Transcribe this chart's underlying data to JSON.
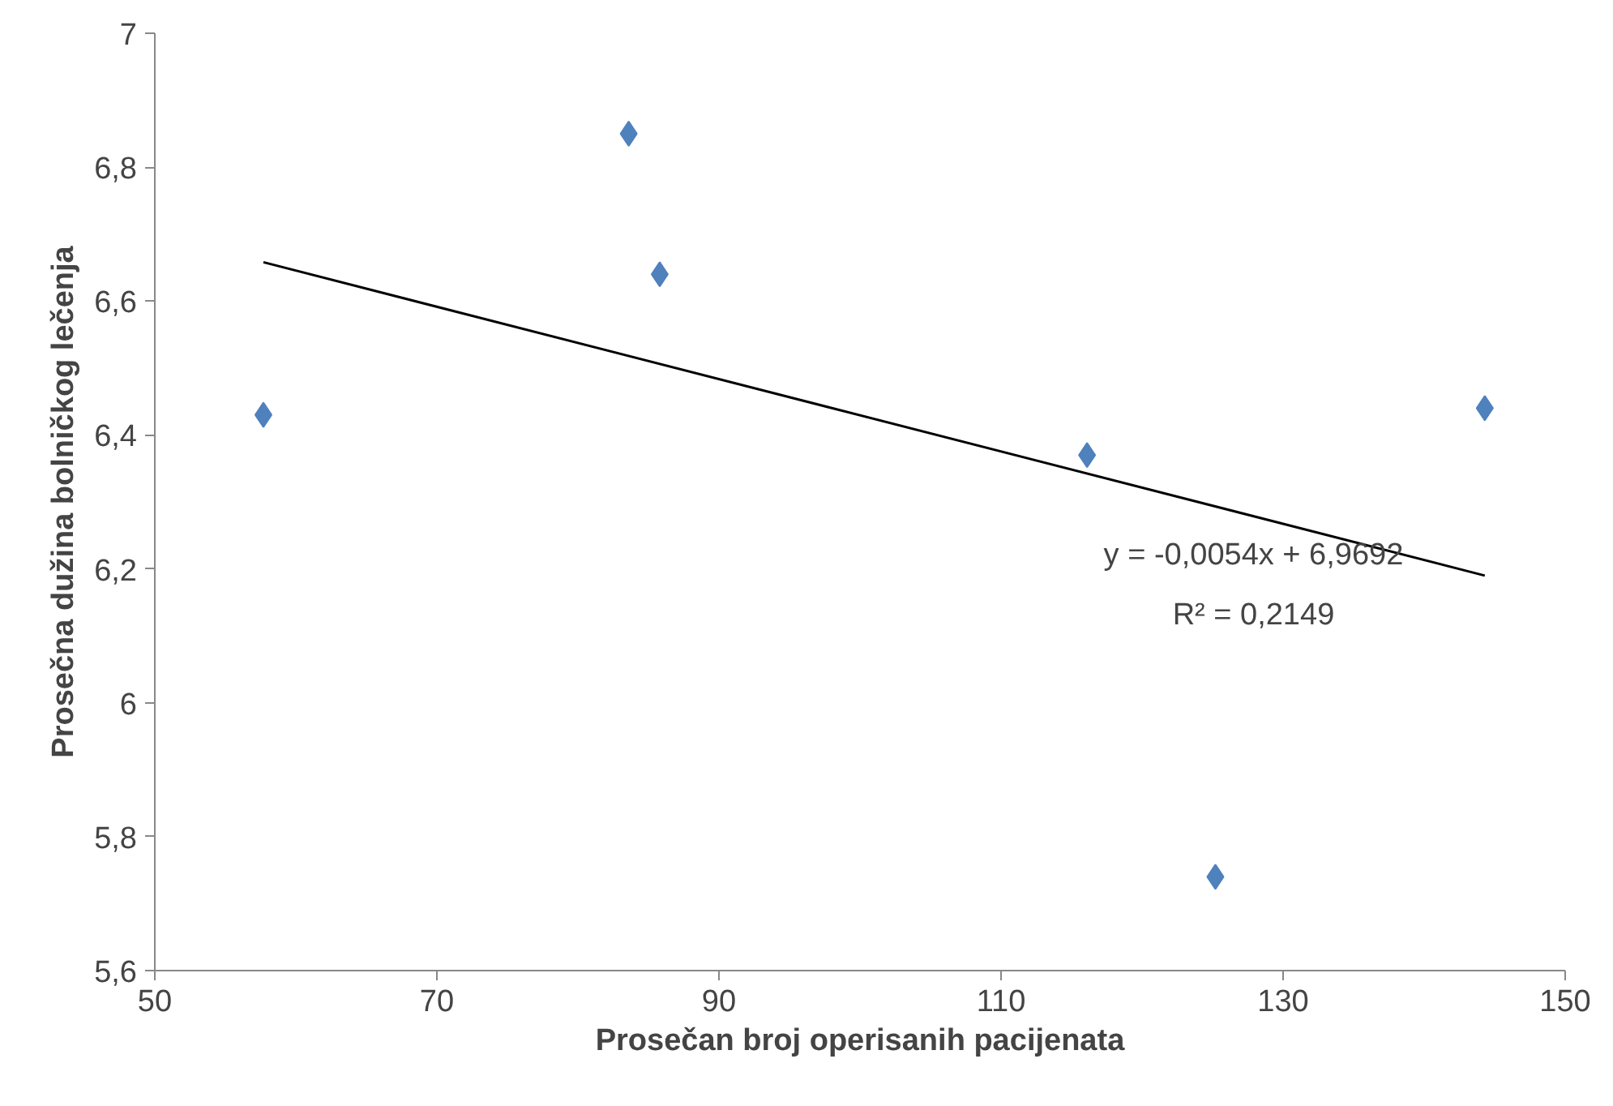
{
  "chart_data": {
    "type": "scatter",
    "xlabel": "Prosečan broj operisanih pacijenata",
    "ylabel": "Prosečna dužina bolničkog lečenja",
    "series": [
      {
        "color": "#4f81bd",
        "marker": "diamond",
        "x": [
          57.7,
          83.6,
          85.8,
          116.1,
          125.2,
          144.3
        ],
        "values": [
          6.43,
          6.85,
          6.64,
          6.37,
          5.74,
          6.44
        ]
      },
      {
        "type": "line",
        "color": "#000000",
        "line_style": "solid",
        "x": [
          57.7,
          144.3
        ],
        "values": [
          6.658,
          6.19
        ]
      }
    ],
    "xlim": [
      50,
      150
    ],
    "xticks": [
      50,
      70,
      90,
      110,
      130,
      150
    ],
    "ylim": [
      5.6,
      7
    ],
    "yticks": [
      {
        "value": 5.6,
        "label": "5,6"
      },
      {
        "value": 5.8,
        "label": "5,8"
      },
      {
        "value": 6,
        "label": "6"
      },
      {
        "value": 6.2,
        "label": "6,2"
      },
      {
        "value": 6.4,
        "label": "6,4"
      },
      {
        "value": 6.6,
        "label": "6,6"
      },
      {
        "value": 6.8,
        "label": "6,8"
      },
      {
        "value": 7,
        "label": "7"
      }
    ],
    "annotations": [
      "y = -0,0054x + 6,9692",
      "R² = 0,2149"
    ],
    "grid": false,
    "legend": false
  }
}
